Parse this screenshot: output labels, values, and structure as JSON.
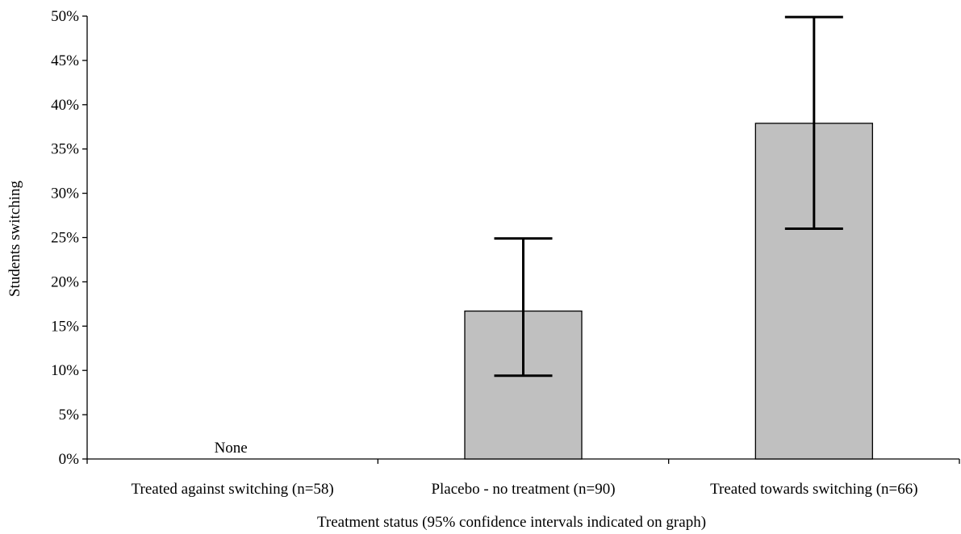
{
  "chart_data": {
    "type": "bar",
    "categories": [
      "Treated against switching  (n=58)",
      "Placebo - no treatment (n=90)",
      "Treated towards switching (n=66)"
    ],
    "values": [
      0,
      16.7,
      37.9
    ],
    "error_low": [
      null,
      9.4,
      26.0
    ],
    "error_high": [
      null,
      24.9,
      49.9
    ],
    "ylim": [
      0,
      50
    ],
    "yticks": [
      0,
      5,
      10,
      15,
      20,
      25,
      30,
      35,
      40,
      45,
      50
    ],
    "ytick_labels": [
      "0%",
      "5%",
      "10%",
      "15%",
      "20%",
      "25%",
      "30%",
      "35%",
      "40%",
      "45%",
      "50%"
    ],
    "xlabel": "Treatment status (95% confidence intervals indicated on graph)",
    "ylabel": "Students switching",
    "annotations": [
      {
        "category_index": 0,
        "text": "None"
      }
    ],
    "bar_color": "#c0c0c0",
    "bar_edge_color": "#000000",
    "grid": false
  }
}
